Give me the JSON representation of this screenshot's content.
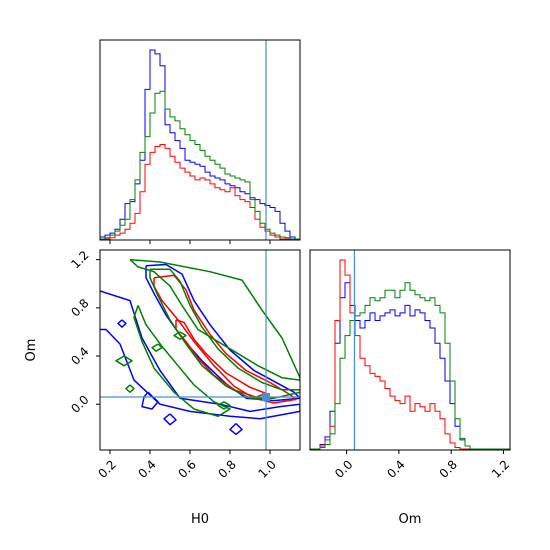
{
  "chart_data": {
    "type": "corner",
    "title": "",
    "parameters": [
      "H0",
      "Om"
    ],
    "truth": {
      "H0": 0.98,
      "Om": 0.06
    },
    "truth_color": "#4a90c8",
    "series": [
      {
        "color": "#0000ff"
      },
      {
        "color": "#ff0000"
      },
      {
        "color": "#008000"
      }
    ],
    "panels": {
      "hist_H0": {
        "x_range": [
          0.15,
          1.15
        ],
        "bins": 40,
        "heights": {
          "blue": [
            0.5,
            1.0,
            1.5,
            2.5,
            5.0,
            9.0,
            9.5,
            14.0,
            20.0,
            38.0,
            48.0,
            47.0,
            44.0,
            29.0,
            27.0,
            25.0,
            23.0,
            20.0,
            19.5,
            19.0,
            18.5,
            17.0,
            16.0,
            15.5,
            15.0,
            14.0,
            13.5,
            13.0,
            12.0,
            11.5,
            10.5,
            10.0,
            9.0,
            8.5,
            8.0,
            7.0,
            4.0,
            2.0,
            0.5,
            0.0
          ],
          "red": [
            0.0,
            0.0,
            0.3,
            1.0,
            1.5,
            2.5,
            4.0,
            6.5,
            12.0,
            19.0,
            22.0,
            23.5,
            24.0,
            23.0,
            21.0,
            19.5,
            18.0,
            17.0,
            16.0,
            15.0,
            15.5,
            15.0,
            14.0,
            13.0,
            12.5,
            12.0,
            13.0,
            11.0,
            10.0,
            9.5,
            8.0,
            5.0,
            3.0,
            2.0,
            1.0,
            0.5,
            0.0,
            0.0,
            0.0,
            0.0
          ],
          "green": [
            0.0,
            0.3,
            1.0,
            2.0,
            3.5,
            5.0,
            10.0,
            15.0,
            22.0,
            26.0,
            32.0,
            37.0,
            37.5,
            33.0,
            31.0,
            30.0,
            28.0,
            26.5,
            25.0,
            24.0,
            22.5,
            21.0,
            20.0,
            19.0,
            18.0,
            16.5,
            16.0,
            15.5,
            15.0,
            14.5,
            10.0,
            7.0,
            4.0,
            2.5,
            1.5,
            1.0,
            0.5,
            0.3,
            0.0,
            0.0
          ]
        }
      },
      "hist_Om": {
        "x_range": [
          -0.28,
          1.25
        ],
        "bins": 40,
        "heights": {
          "blue": [
            0.0,
            0.0,
            0.3,
            0.8,
            2.5,
            7.0,
            10.0,
            11.0,
            9.5,
            8.5,
            8.0,
            8.5,
            9.0,
            8.5,
            8.8,
            9.0,
            9.2,
            8.8,
            9.0,
            9.5,
            8.8,
            9.2,
            9.0,
            8.5,
            8.0,
            7.0,
            6.0,
            4.5,
            3.0,
            1.5,
            0.6,
            0.2,
            0.0,
            0.0,
            0.0,
            0.0,
            0.0,
            0.0,
            0.0,
            0.0
          ],
          "red": [
            0.0,
            0.0,
            0.2,
            0.6,
            1.5,
            8.5,
            12.5,
            11.5,
            9.0,
            7.5,
            6.0,
            5.5,
            5.0,
            4.8,
            4.5,
            4.0,
            3.5,
            3.2,
            3.0,
            3.5,
            2.5,
            3.0,
            2.8,
            2.5,
            3.0,
            2.5,
            2.0,
            1.0,
            0.4,
            0.1,
            0.0,
            0.0,
            0.0,
            0.0,
            0.0,
            0.0,
            0.0,
            0.0,
            0.0,
            0.0
          ],
          "green": [
            0.0,
            0.0,
            0.1,
            0.3,
            1.0,
            3.0,
            6.0,
            7.5,
            8.5,
            8.8,
            9.0,
            9.5,
            10.0,
            9.8,
            10.0,
            10.5,
            10.5,
            10.0,
            10.5,
            11.0,
            10.5,
            10.2,
            10.0,
            9.8,
            10.0,
            9.5,
            9.0,
            7.0,
            4.5,
            2.0,
            0.7,
            0.2,
            0.0,
            0.0,
            0.0,
            0.0,
            0.0,
            0.0,
            0.0,
            0.0
          ]
        }
      },
      "contour_H0_Om": {
        "x_range": [
          0.15,
          1.15
        ],
        "y_range": [
          -0.38,
          1.28
        ],
        "contours": {
          "blue": [
            [
              [
                0.38,
                1.15
              ],
              [
                0.48,
                1.16
              ],
              [
                0.56,
                1.08
              ],
              [
                0.62,
                0.86
              ],
              [
                0.7,
                0.66
              ],
              [
                0.8,
                0.45
              ],
              [
                0.92,
                0.28
              ],
              [
                1.02,
                0.19
              ],
              [
                1.12,
                0.1
              ],
              [
                1.15,
                0.05
              ],
              [
                1.02,
                0.03
              ],
              [
                0.88,
                0.05
              ],
              [
                0.78,
                0.17
              ],
              [
                0.66,
                0.36
              ],
              [
                0.56,
                0.55
              ],
              [
                0.48,
                0.74
              ],
              [
                0.42,
                0.92
              ],
              [
                0.38,
                1.05
              ],
              [
                0.38,
                1.15
              ]
            ],
            [
              [
                0.15,
                0.94
              ],
              [
                0.3,
                0.86
              ],
              [
                0.36,
                0.55
              ],
              [
                0.45,
                0.28
              ],
              [
                0.55,
                0.05
              ],
              [
                0.75,
                0.0
              ],
              [
                0.9,
                -0.06
              ],
              [
                1.05,
                -0.02
              ],
              [
                1.15,
                0.0
              ],
              [
                1.15,
                -0.06
              ],
              [
                0.95,
                -0.12
              ],
              [
                0.8,
                -0.1
              ],
              [
                0.6,
                -0.06
              ],
              [
                0.45,
                0.0
              ],
              [
                0.32,
                0.2
              ],
              [
                0.25,
                0.5
              ],
              [
                0.18,
                0.62
              ],
              [
                0.15,
                0.62
              ]
            ],
            [
              [
                0.39,
                0.1
              ],
              [
                0.44,
                0.02
              ],
              [
                0.41,
                -0.04
              ],
              [
                0.36,
                -0.02
              ],
              [
                0.37,
                0.06
              ],
              [
                0.39,
                0.1
              ]
            ],
            [
              [
                0.5,
                -0.08
              ],
              [
                0.53,
                -0.13
              ],
              [
                0.5,
                -0.17
              ],
              [
                0.47,
                -0.12
              ],
              [
                0.5,
                -0.08
              ]
            ],
            [
              [
                0.83,
                -0.16
              ],
              [
                0.86,
                -0.21
              ],
              [
                0.83,
                -0.25
              ],
              [
                0.8,
                -0.21
              ],
              [
                0.83,
                -0.16
              ]
            ],
            [
              [
                0.26,
                0.7
              ],
              [
                0.28,
                0.67
              ],
              [
                0.26,
                0.64
              ],
              [
                0.24,
                0.67
              ],
              [
                0.26,
                0.7
              ]
            ]
          ],
          "red": [
            [
              [
                0.42,
                1.05
              ],
              [
                0.52,
                1.07
              ],
              [
                0.58,
                0.95
              ],
              [
                0.62,
                0.78
              ],
              [
                0.7,
                0.58
              ],
              [
                0.78,
                0.42
              ],
              [
                0.88,
                0.28
              ],
              [
                1.0,
                0.18
              ],
              [
                1.1,
                0.08
              ],
              [
                1.13,
                0.04
              ],
              [
                1.02,
                0.01
              ],
              [
                0.92,
                0.05
              ],
              [
                0.82,
                0.15
              ],
              [
                0.72,
                0.32
              ],
              [
                0.62,
                0.52
              ],
              [
                0.54,
                0.7
              ],
              [
                0.46,
                0.86
              ],
              [
                0.42,
                0.98
              ],
              [
                0.42,
                1.05
              ]
            ],
            [
              [
                0.53,
                0.7
              ],
              [
                0.57,
                0.68
              ],
              [
                0.62,
                0.54
              ],
              [
                0.68,
                0.42
              ],
              [
                0.78,
                0.26
              ],
              [
                0.9,
                0.14
              ],
              [
                0.98,
                0.09
              ],
              [
                0.93,
                0.06
              ],
              [
                0.82,
                0.12
              ],
              [
                0.72,
                0.24
              ],
              [
                0.64,
                0.38
              ],
              [
                0.58,
                0.52
              ],
              [
                0.53,
                0.62
              ],
              [
                0.53,
                0.7
              ]
            ]
          ],
          "green": [
            [
              [
                0.3,
                1.2
              ],
              [
                0.45,
                1.18
              ],
              [
                0.7,
                1.1
              ],
              [
                0.86,
                1.03
              ],
              [
                0.96,
                0.78
              ],
              [
                1.06,
                0.55
              ],
              [
                1.15,
                0.22
              ],
              [
                1.15,
                0.2
              ],
              [
                1.06,
                0.22
              ],
              [
                0.94,
                0.32
              ],
              [
                0.82,
                0.44
              ],
              [
                0.72,
                0.54
              ],
              [
                0.64,
                0.62
              ],
              [
                0.56,
                0.82
              ],
              [
                0.5,
                0.98
              ],
              [
                0.42,
                1.1
              ],
              [
                0.34,
                1.14
              ],
              [
                0.3,
                1.2
              ]
            ],
            [
              [
                0.4,
                1.12
              ],
              [
                0.5,
                1.12
              ],
              [
                0.55,
                1.02
              ],
              [
                0.6,
                0.82
              ],
              [
                0.66,
                0.64
              ],
              [
                0.74,
                0.46
              ],
              [
                0.84,
                0.3
              ],
              [
                0.96,
                0.18
              ],
              [
                1.06,
                0.12
              ],
              [
                1.15,
                0.12
              ],
              [
                1.15,
                0.1
              ],
              [
                1.02,
                0.05
              ],
              [
                0.9,
                0.05
              ],
              [
                0.78,
                0.15
              ],
              [
                0.66,
                0.32
              ],
              [
                0.58,
                0.5
              ],
              [
                0.5,
                0.7
              ],
              [
                0.44,
                0.9
              ],
              [
                0.4,
                1.05
              ],
              [
                0.4,
                1.12
              ]
            ],
            [
              [
                0.34,
                0.82
              ],
              [
                0.38,
                0.66
              ],
              [
                0.46,
                0.48
              ],
              [
                0.54,
                0.32
              ],
              [
                0.62,
                0.16
              ],
              [
                0.72,
                0.02
              ],
              [
                0.8,
                -0.04
              ],
              [
                0.74,
                -0.1
              ],
              [
                0.62,
                -0.04
              ],
              [
                0.52,
                0.1
              ],
              [
                0.42,
                0.3
              ],
              [
                0.36,
                0.52
              ],
              [
                0.32,
                0.72
              ],
              [
                0.34,
                0.82
              ]
            ],
            [
              [
                0.55,
                0.6
              ],
              [
                0.58,
                0.57
              ],
              [
                0.55,
                0.54
              ],
              [
                0.52,
                0.57
              ],
              [
                0.55,
                0.6
              ]
            ],
            [
              [
                0.44,
                0.5
              ],
              [
                0.46,
                0.47
              ],
              [
                0.43,
                0.44
              ],
              [
                0.41,
                0.47
              ],
              [
                0.44,
                0.5
              ]
            ],
            [
              [
                0.27,
                0.4
              ],
              [
                0.31,
                0.36
              ],
              [
                0.27,
                0.32
              ],
              [
                0.23,
                0.36
              ],
              [
                0.27,
                0.4
              ]
            ],
            [
              [
                0.3,
                0.16
              ],
              [
                0.32,
                0.13
              ],
              [
                0.3,
                0.1
              ],
              [
                0.28,
                0.13
              ],
              [
                0.3,
                0.16
              ]
            ],
            [
              [
                0.77,
                0.02
              ],
              [
                0.8,
                -0.01
              ],
              [
                0.77,
                -0.04
              ],
              [
                0.74,
                -0.01
              ],
              [
                0.77,
                0.02
              ]
            ]
          ]
        }
      }
    },
    "axes": {
      "H0": {
        "label": "H0",
        "ticks": [
          0.2,
          0.4,
          0.6,
          0.8,
          1.0
        ],
        "tick_labels": [
          "0.2",
          "0.4",
          "0.6",
          "0.8",
          "1.0"
        ]
      },
      "Om_y": {
        "label": "Om",
        "ticks": [
          0.0,
          0.4,
          0.8,
          1.2
        ],
        "tick_labels": [
          "0.0",
          "0.4",
          "0.8",
          "1.2"
        ]
      },
      "Om_x": {
        "label": "Om",
        "ticks": [
          0.0,
          0.4,
          0.8,
          1.2
        ],
        "tick_labels": [
          "0.0",
          "0.4",
          "0.8",
          "1.2"
        ]
      }
    }
  }
}
